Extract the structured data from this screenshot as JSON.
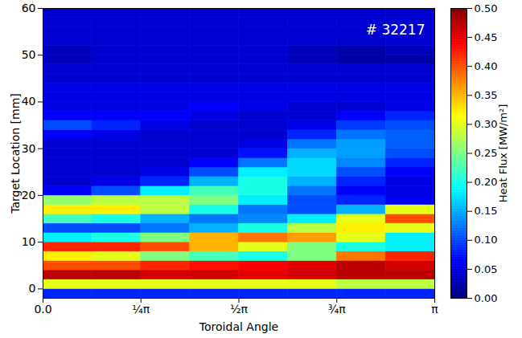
{
  "chart_data": {
    "type": "heatmap",
    "xlabel": "Toroidal Angle",
    "ylabel": "Target Location [mm]",
    "annotations": [
      "# 32217"
    ],
    "xlim": [
      0,
      3.1415926536
    ],
    "xticks": [
      {
        "value": 0,
        "label": "0.0"
      },
      {
        "value": 0.7853981634,
        "label": "¼π"
      },
      {
        "value": 1.5707963268,
        "label": "½π"
      },
      {
        "value": 2.3561944902,
        "label": "¾π"
      },
      {
        "value": 3.1415926536,
        "label": "π"
      }
    ],
    "ylim": [
      -2,
      60
    ],
    "yticks": [
      0,
      10,
      20,
      30,
      40,
      50,
      60
    ],
    "x_bins": [
      0,
      0.3926990817,
      0.7853981634,
      1.1780972451,
      1.5707963268,
      1.9634954085,
      2.3561944902,
      2.7488935719,
      3.1415926536
    ],
    "y_bins": [
      -2,
      0,
      2,
      4,
      6,
      8,
      10,
      12,
      14,
      16,
      18,
      20,
      22,
      24,
      26,
      28,
      30,
      32,
      34,
      36,
      38,
      40,
      42,
      44,
      46,
      48,
      50,
      52,
      54,
      56,
      58,
      60
    ],
    "cells": [
      [
        0.08,
        0.08,
        0.08,
        0.08,
        0.08,
        0.08,
        0.08,
        0.08
      ],
      [
        0.3,
        0.3,
        0.3,
        0.3,
        0.3,
        0.3,
        0.28,
        0.28
      ],
      [
        0.47,
        0.47,
        0.46,
        0.46,
        0.45,
        0.46,
        0.47,
        0.47
      ],
      [
        0.4,
        0.4,
        0.42,
        0.43,
        0.44,
        0.45,
        0.47,
        0.46
      ],
      [
        0.32,
        0.3,
        0.25,
        0.22,
        0.2,
        0.25,
        0.38,
        0.42
      ],
      [
        0.42,
        0.42,
        0.4,
        0.35,
        0.3,
        0.25,
        0.2,
        0.18
      ],
      [
        0.18,
        0.2,
        0.25,
        0.35,
        0.38,
        0.36,
        0.3,
        0.18
      ],
      [
        0.1,
        0.1,
        0.12,
        0.15,
        0.2,
        0.28,
        0.32,
        0.3
      ],
      [
        0.22,
        0.2,
        0.15,
        0.12,
        0.13,
        0.18,
        0.3,
        0.4
      ],
      [
        0.32,
        0.32,
        0.28,
        0.2,
        0.12,
        0.1,
        0.15,
        0.3
      ],
      [
        0.26,
        0.28,
        0.28,
        0.25,
        0.18,
        0.1,
        0.08,
        0.06
      ],
      [
        0.06,
        0.1,
        0.18,
        0.22,
        0.2,
        0.12,
        0.06,
        0.05
      ],
      [
        0.04,
        0.05,
        0.08,
        0.15,
        0.2,
        0.15,
        0.08,
        0.05
      ],
      [
        0.04,
        0.04,
        0.05,
        0.1,
        0.18,
        0.17,
        0.1,
        0.06
      ],
      [
        0.04,
        0.04,
        0.04,
        0.06,
        0.12,
        0.17,
        0.13,
        0.08
      ],
      [
        0.04,
        0.04,
        0.04,
        0.04,
        0.07,
        0.15,
        0.14,
        0.1
      ],
      [
        0.04,
        0.04,
        0.04,
        0.04,
        0.05,
        0.12,
        0.14,
        0.11
      ],
      [
        0.06,
        0.05,
        0.04,
        0.04,
        0.04,
        0.08,
        0.12,
        0.11
      ],
      [
        0.1,
        0.08,
        0.05,
        0.04,
        0.04,
        0.05,
        0.09,
        0.1
      ],
      [
        0.06,
        0.06,
        0.06,
        0.05,
        0.04,
        0.04,
        0.06,
        0.08
      ],
      [
        0.05,
        0.05,
        0.05,
        0.06,
        0.05,
        0.04,
        0.04,
        0.05
      ],
      [
        0.05,
        0.05,
        0.05,
        0.05,
        0.05,
        0.05,
        0.05,
        0.05
      ],
      [
        0.05,
        0.05,
        0.05,
        0.05,
        0.05,
        0.05,
        0.05,
        0.05
      ],
      [
        0.04,
        0.04,
        0.04,
        0.04,
        0.04,
        0.04,
        0.04,
        0.04
      ],
      [
        0.04,
        0.04,
        0.04,
        0.04,
        0.04,
        0.04,
        0.04,
        0.04
      ],
      [
        0.03,
        0.04,
        0.04,
        0.04,
        0.04,
        0.03,
        0.02,
        0.02
      ],
      [
        0.03,
        0.04,
        0.04,
        0.04,
        0.04,
        0.03,
        0.02,
        0.03
      ],
      [
        0.04,
        0.04,
        0.04,
        0.04,
        0.04,
        0.04,
        0.04,
        0.04
      ],
      [
        0.04,
        0.04,
        0.04,
        0.04,
        0.04,
        0.04,
        0.04,
        0.04
      ],
      [
        0.04,
        0.04,
        0.04,
        0.04,
        0.04,
        0.04,
        0.04,
        0.04
      ],
      [
        0.04,
        0.04,
        0.04,
        0.04,
        0.04,
        0.04,
        0.04,
        0.04
      ]
    ],
    "colorbar": {
      "label": "Heat Flux [MW/m²]",
      "lim": [
        0,
        0.5
      ],
      "ticks": [
        {
          "value": 0,
          "label": "0.00"
        },
        {
          "value": 0.05,
          "label": "0.05"
        },
        {
          "value": 0.1,
          "label": "0.10"
        },
        {
          "value": 0.15,
          "label": "0.15"
        },
        {
          "value": 0.2,
          "label": "0.20"
        },
        {
          "value": 0.25,
          "label": "0.25"
        },
        {
          "value": 0.3,
          "label": "0.30"
        },
        {
          "value": 0.35,
          "label": "0.35"
        },
        {
          "value": 0.4,
          "label": "0.40"
        },
        {
          "value": 0.45,
          "label": "0.45"
        },
        {
          "value": 0.5,
          "label": "0.50"
        }
      ]
    }
  }
}
